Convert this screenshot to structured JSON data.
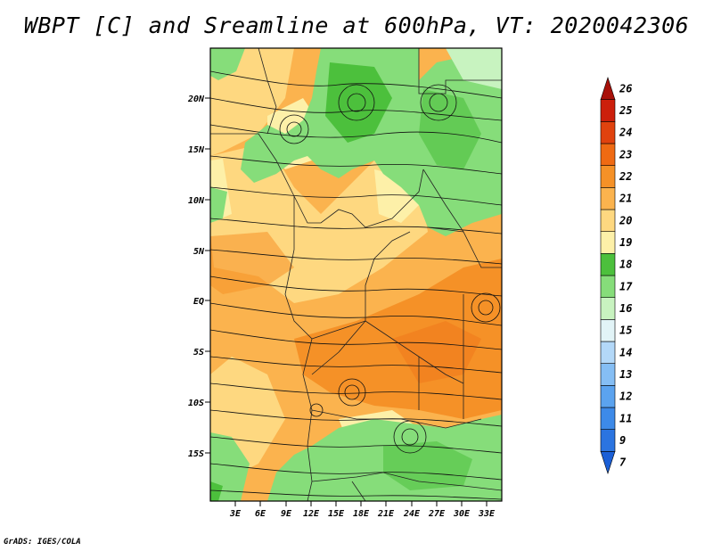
{
  "title": "WBPT [C] and Sreamline at 600hPa, VT: 2020042306",
  "credit": "GrADS: IGES/COLA",
  "lat_labels": [
    "20N",
    "15N",
    "10N",
    "5N",
    "EQ",
    "5S",
    "10S",
    "15S"
  ],
  "lon_labels": [
    "3E",
    "6E",
    "9E",
    "12E",
    "15E",
    "18E",
    "21E",
    "24E",
    "27E",
    "30E",
    "33E"
  ],
  "colorbar": {
    "labels": [
      "7",
      "9",
      "11",
      "12",
      "13",
      "14",
      "15",
      "16",
      "17",
      "18",
      "19",
      "20",
      "21",
      "22",
      "23",
      "24",
      "25",
      "26"
    ],
    "colors": [
      "#1b5fd6",
      "#2b74e0",
      "#3d8ae8",
      "#5ba3ef",
      "#85bef4",
      "#b3d8f8",
      "#e2f4f7",
      "#c8f3c0",
      "#86dd7a",
      "#4cc03c",
      "#fdf0a8",
      "#fed880",
      "#fbb34e",
      "#f59127",
      "#ef6a13",
      "#e0420e",
      "#cc1f0c",
      "#a8110a"
    ]
  },
  "regions": {
    "south_green": "green-south",
    "north_green": "green-north",
    "east_orange": "orange-east"
  }
}
